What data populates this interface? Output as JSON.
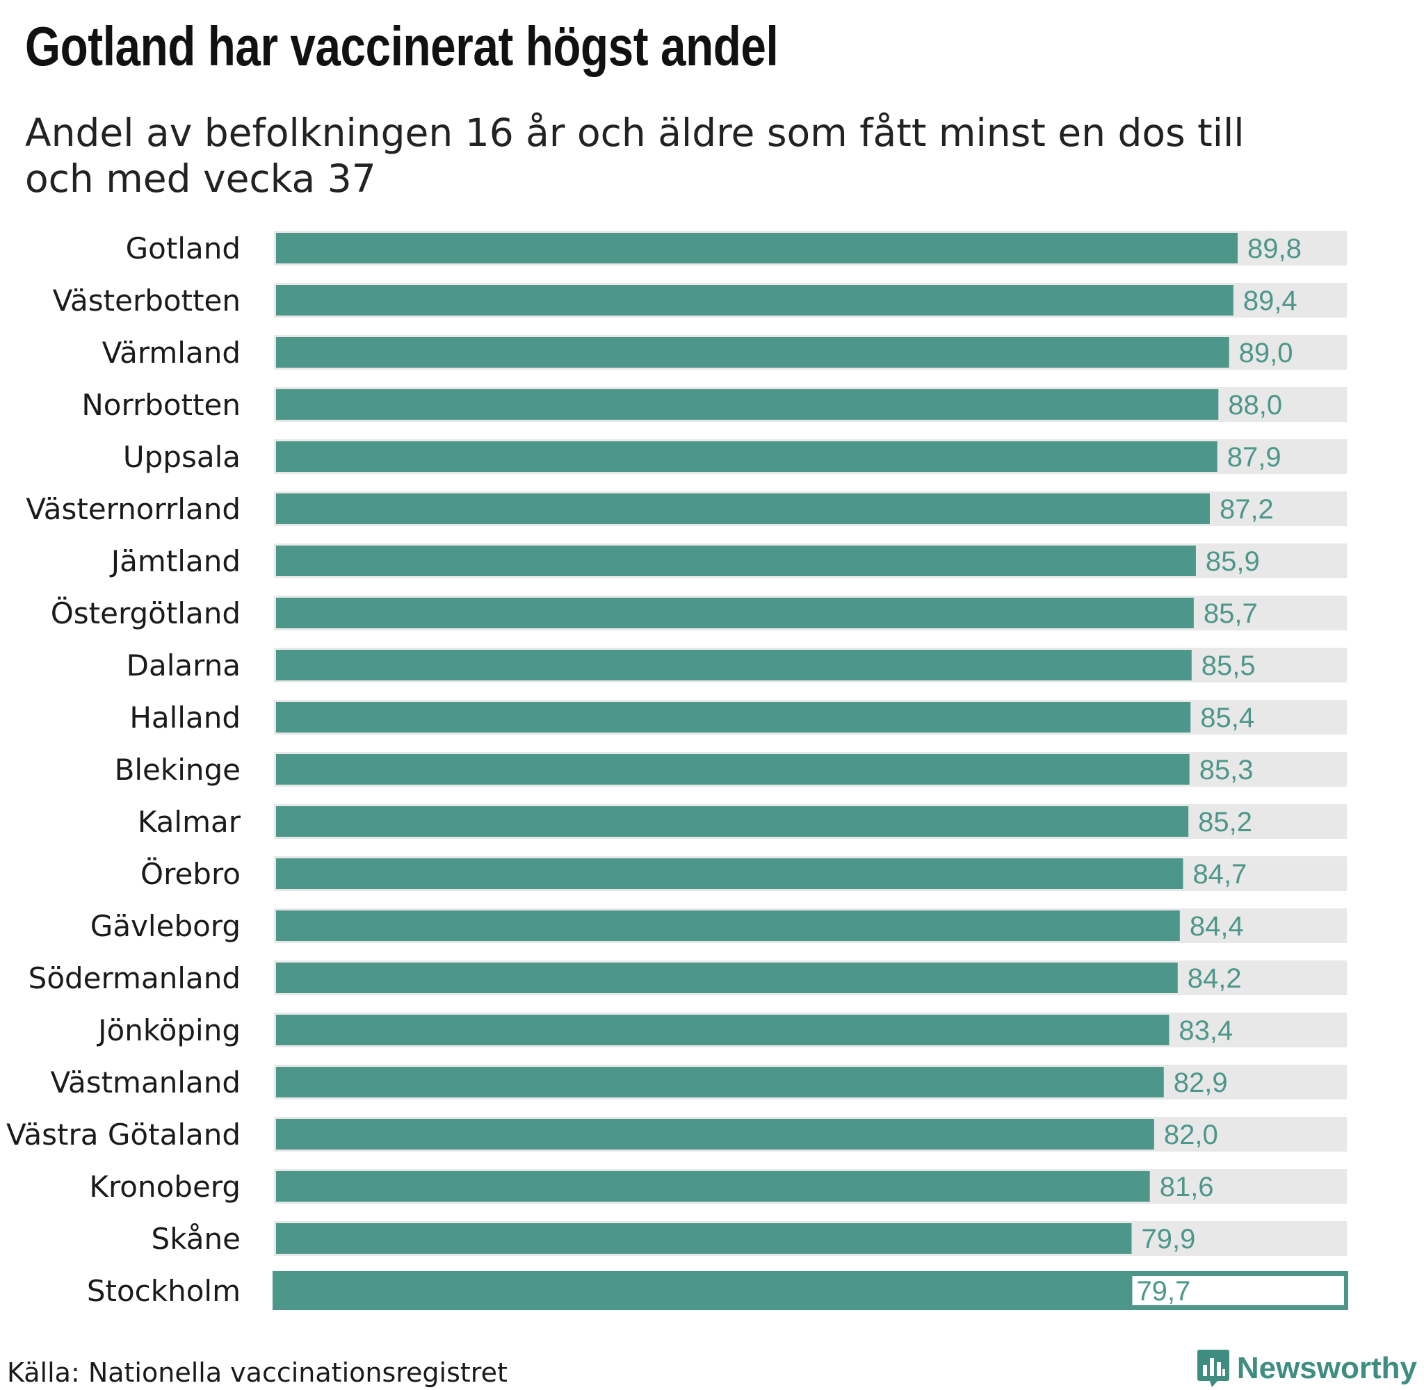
{
  "title": "Gotland har vaccinerat högst andel",
  "subtitle": "Andel av befolkningen 16 år och äldre som fått minst en dos till och med vecka 37",
  "source": "Källa: Nationella vaccinationsregistret",
  "brand": {
    "name": "Newsworthy",
    "icon": "newsworthy-bar-chart-icon"
  },
  "colors": {
    "bar": "#4d978a",
    "track": "#e8e8e8",
    "value_text": "#4d978a",
    "brand": "#3f8d80"
  },
  "chart_data": {
    "type": "bar",
    "orientation": "horizontal",
    "title": "Gotland har vaccinerat högst andel",
    "subtitle": "Andel av befolkningen 16 år och äldre som fått minst en dos till och med vecka 37",
    "xlabel": "",
    "ylabel": "",
    "categories": [
      "Gotland",
      "Västerbotten",
      "Värmland",
      "Norrbotten",
      "Uppsala",
      "Västernorrland",
      "Jämtland",
      "Östergötland",
      "Dalarna",
      "Halland",
      "Blekinge",
      "Kalmar",
      "Örebro",
      "Gävleborg",
      "Södermanland",
      "Jönköping",
      "Västmanland",
      "Västra Götaland",
      "Kronoberg",
      "Skåne",
      "Stockholm"
    ],
    "values": [
      89.8,
      89.4,
      89.0,
      88.0,
      87.9,
      87.2,
      85.9,
      85.7,
      85.5,
      85.4,
      85.3,
      85.2,
      84.7,
      84.4,
      84.2,
      83.4,
      82.9,
      82.0,
      81.6,
      79.9,
      79.7
    ],
    "value_labels": [
      "89,8",
      "89,4",
      "89,0",
      "88,0",
      "87,9",
      "87,2",
      "85,9",
      "85,7",
      "85,5",
      "85,4",
      "85,3",
      "85,2",
      "84,7",
      "84,4",
      "84,2",
      "83,4",
      "82,9",
      "82,0",
      "81,6",
      "79,9",
      "79,7"
    ],
    "highlighted": "Stockholm",
    "xlim": [
      0,
      100
    ],
    "grid": false,
    "legend": "none"
  }
}
